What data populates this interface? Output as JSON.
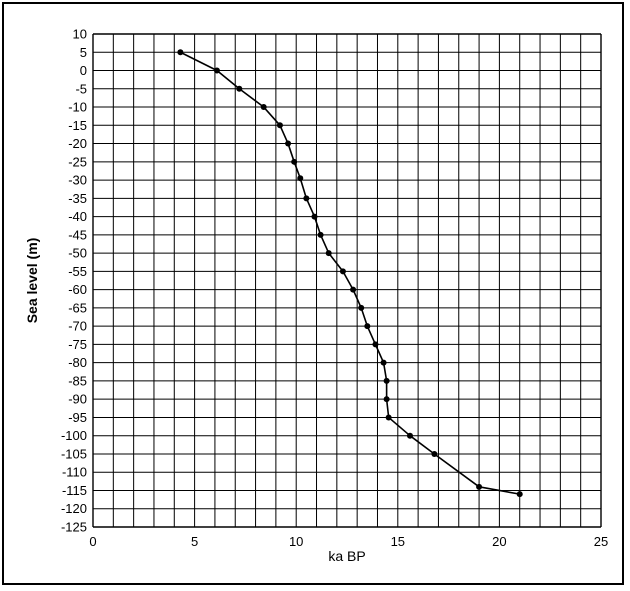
{
  "chart_data": {
    "type": "line",
    "title": "",
    "xlabel": "ka BP",
    "ylabel": "Sea level (m)",
    "xlim": [
      0,
      25
    ],
    "ylim": [
      -125,
      10
    ],
    "x_tick_step": 1,
    "x_tick_label_step": 5,
    "y_tick_step": 5,
    "grid": true,
    "legend": "none",
    "colors": {
      "line": "#000000",
      "grid": "#000000",
      "marker": "#000000"
    },
    "series": [
      {
        "x": [
          4.3,
          6.1,
          7.2,
          8.4,
          9.2,
          9.6,
          9.9,
          10.2,
          10.5,
          10.9,
          11.2,
          11.6,
          12.3,
          12.8,
          13.2,
          13.5,
          13.9,
          14.3,
          14.45,
          14.45,
          14.55,
          15.6,
          16.8,
          19.0,
          21.0
        ],
        "y": [
          5,
          0,
          -5,
          -10,
          -15,
          -20,
          -25,
          -29.5,
          -35,
          -40,
          -45,
          -50,
          -55,
          -60,
          -65,
          -70,
          -75,
          -80,
          -85,
          -90,
          -95,
          -100,
          -105,
          -114,
          -116
        ]
      }
    ]
  }
}
